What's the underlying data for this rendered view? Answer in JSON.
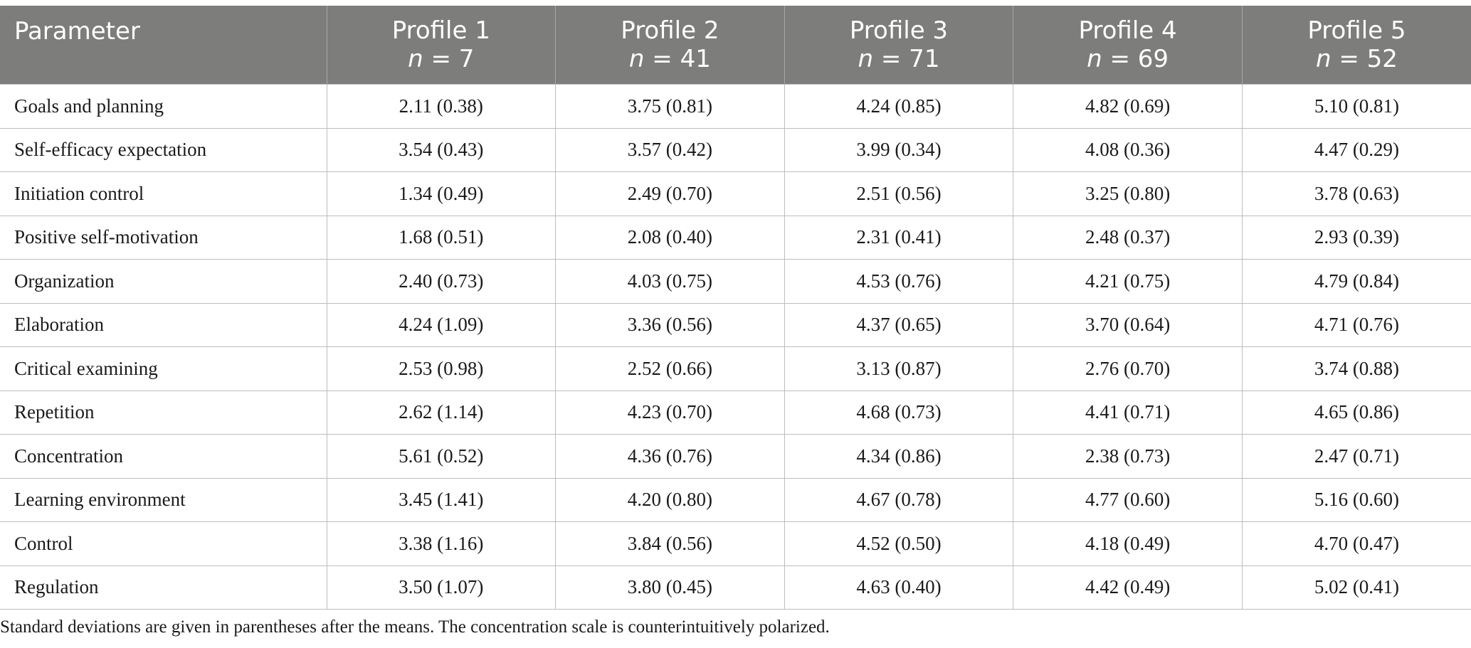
{
  "table": {
    "header": {
      "parameter": "Parameter",
      "profiles": [
        {
          "label": "Profile 1",
          "n_symbol": "n",
          "n_text": " = 7"
        },
        {
          "label": "Profile 2",
          "n_symbol": "n",
          "n_text": " = 41"
        },
        {
          "label": "Profile 3",
          "n_symbol": "n",
          "n_text": " = 71"
        },
        {
          "label": "Profile 4",
          "n_symbol": "n",
          "n_text": " = 69"
        },
        {
          "label": "Profile 5",
          "n_symbol": "n",
          "n_text": " = 52"
        }
      ]
    },
    "rows": [
      {
        "parameter": "Goals and planning",
        "values": [
          "2.11 (0.38)",
          "3.75 (0.81)",
          "4.24 (0.85)",
          "4.82 (0.69)",
          "5.10 (0.81)"
        ]
      },
      {
        "parameter": "Self-efficacy expectation",
        "values": [
          "3.54 (0.43)",
          "3.57 (0.42)",
          "3.99 (0.34)",
          "4.08 (0.36)",
          "4.47 (0.29)"
        ]
      },
      {
        "parameter": "Initiation control",
        "values": [
          "1.34 (0.49)",
          "2.49 (0.70)",
          "2.51 (0.56)",
          "3.25 (0.80)",
          "3.78 (0.63)"
        ]
      },
      {
        "parameter": "Positive self-motivation",
        "values": [
          "1.68 (0.51)",
          "2.08 (0.40)",
          "2.31 (0.41)",
          "2.48 (0.37)",
          "2.93 (0.39)"
        ]
      },
      {
        "parameter": "Organization",
        "values": [
          "2.40 (0.73)",
          "4.03 (0.75)",
          "4.53 (0.76)",
          "4.21 (0.75)",
          "4.79 (0.84)"
        ]
      },
      {
        "parameter": "Elaboration",
        "values": [
          "4.24 (1.09)",
          "3.36 (0.56)",
          "4.37 (0.65)",
          "3.70 (0.64)",
          "4.71 (0.76)"
        ]
      },
      {
        "parameter": "Critical examining",
        "values": [
          "2.53 (0.98)",
          "2.52 (0.66)",
          "3.13 (0.87)",
          "2.76 (0.70)",
          "3.74 (0.88)"
        ]
      },
      {
        "parameter": "Repetition",
        "values": [
          "2.62 (1.14)",
          "4.23 (0.70)",
          "4.68 (0.73)",
          "4.41 (0.71)",
          "4.65 (0.86)"
        ]
      },
      {
        "parameter": "Concentration",
        "values": [
          "5.61 (0.52)",
          "4.36 (0.76)",
          "4.34 (0.86)",
          "2.38 (0.73)",
          "2.47 (0.71)"
        ]
      },
      {
        "parameter": "Learning environment",
        "values": [
          "3.45 (1.41)",
          "4.20 (0.80)",
          "4.67 (0.78)",
          "4.77 (0.60)",
          "5.16 (0.60)"
        ]
      },
      {
        "parameter": "Control",
        "values": [
          "3.38 (1.16)",
          "3.84 (0.56)",
          "4.52 (0.50)",
          "4.18 (0.49)",
          "4.70 (0.47)"
        ]
      },
      {
        "parameter": "Regulation",
        "values": [
          "3.50 (1.07)",
          "3.80 (0.45)",
          "4.63 (0.40)",
          "4.42 (0.49)",
          "5.02 (0.41)"
        ]
      }
    ],
    "footnote": "Standard deviations are given in parentheses after the means. The concentration scale is counterintuitively polarized."
  },
  "colors": {
    "header_background": "#7d7d7c",
    "header_text": "#ffffff",
    "grid_lines": "#bdbdbd"
  }
}
